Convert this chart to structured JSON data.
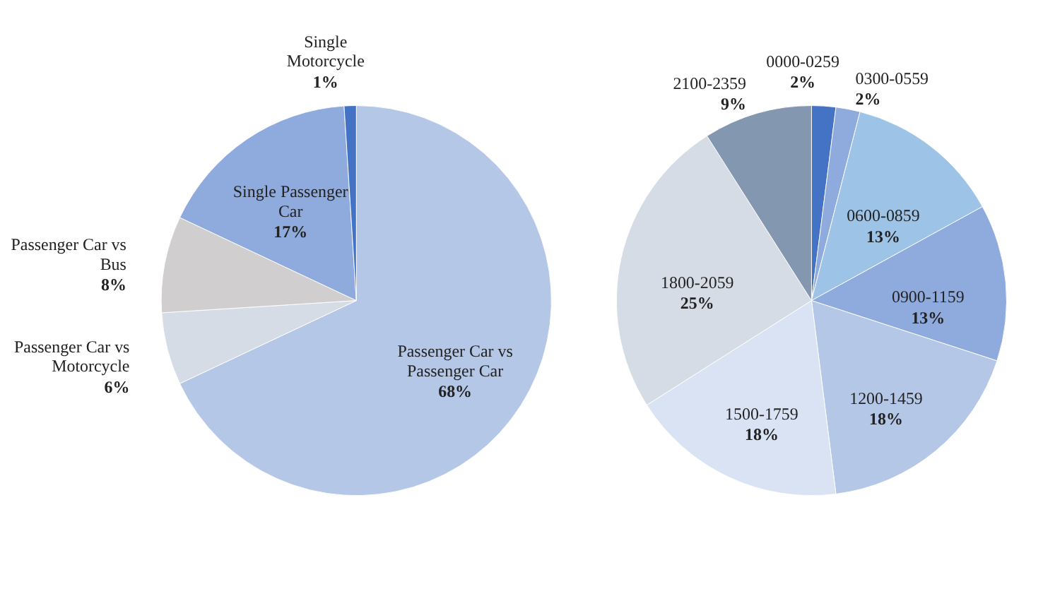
{
  "chart_data": [
    {
      "type": "pie",
      "categories": [
        "Passenger Car vs Passenger Car",
        "Passenger Car vs Motorcycle",
        "Passenger Car vs Bus",
        "Single Passenger Car",
        "Single Motorcycle"
      ],
      "values": [
        68,
        6,
        8,
        17,
        1
      ],
      "value_labels": [
        "68%",
        "6%",
        "8%",
        "17%",
        "1%"
      ],
      "colors": [
        "#b4c7e7",
        "#d6dce5",
        "#d0cece",
        "#8faadc",
        "#4472c4"
      ],
      "legend": false
    },
    {
      "type": "pie",
      "categories": [
        "0000-0259",
        "0300-0559",
        "0600-0859",
        "0900-1159",
        "1200-1459",
        "1500-1759",
        "1800-2059",
        "2100-2359"
      ],
      "values": [
        2,
        2,
        13,
        13,
        18,
        18,
        25,
        9
      ],
      "value_labels": [
        "2%",
        "2%",
        "13%",
        "13%",
        "18%",
        "18%",
        "25%",
        "9%"
      ],
      "colors": [
        "#4472c4",
        "#8faadc",
        "#9dc3e6",
        "#8faadc",
        "#b4c7e7",
        "#dae3f3",
        "#d6dce5",
        "#8497b0"
      ],
      "legend": false
    }
  ]
}
